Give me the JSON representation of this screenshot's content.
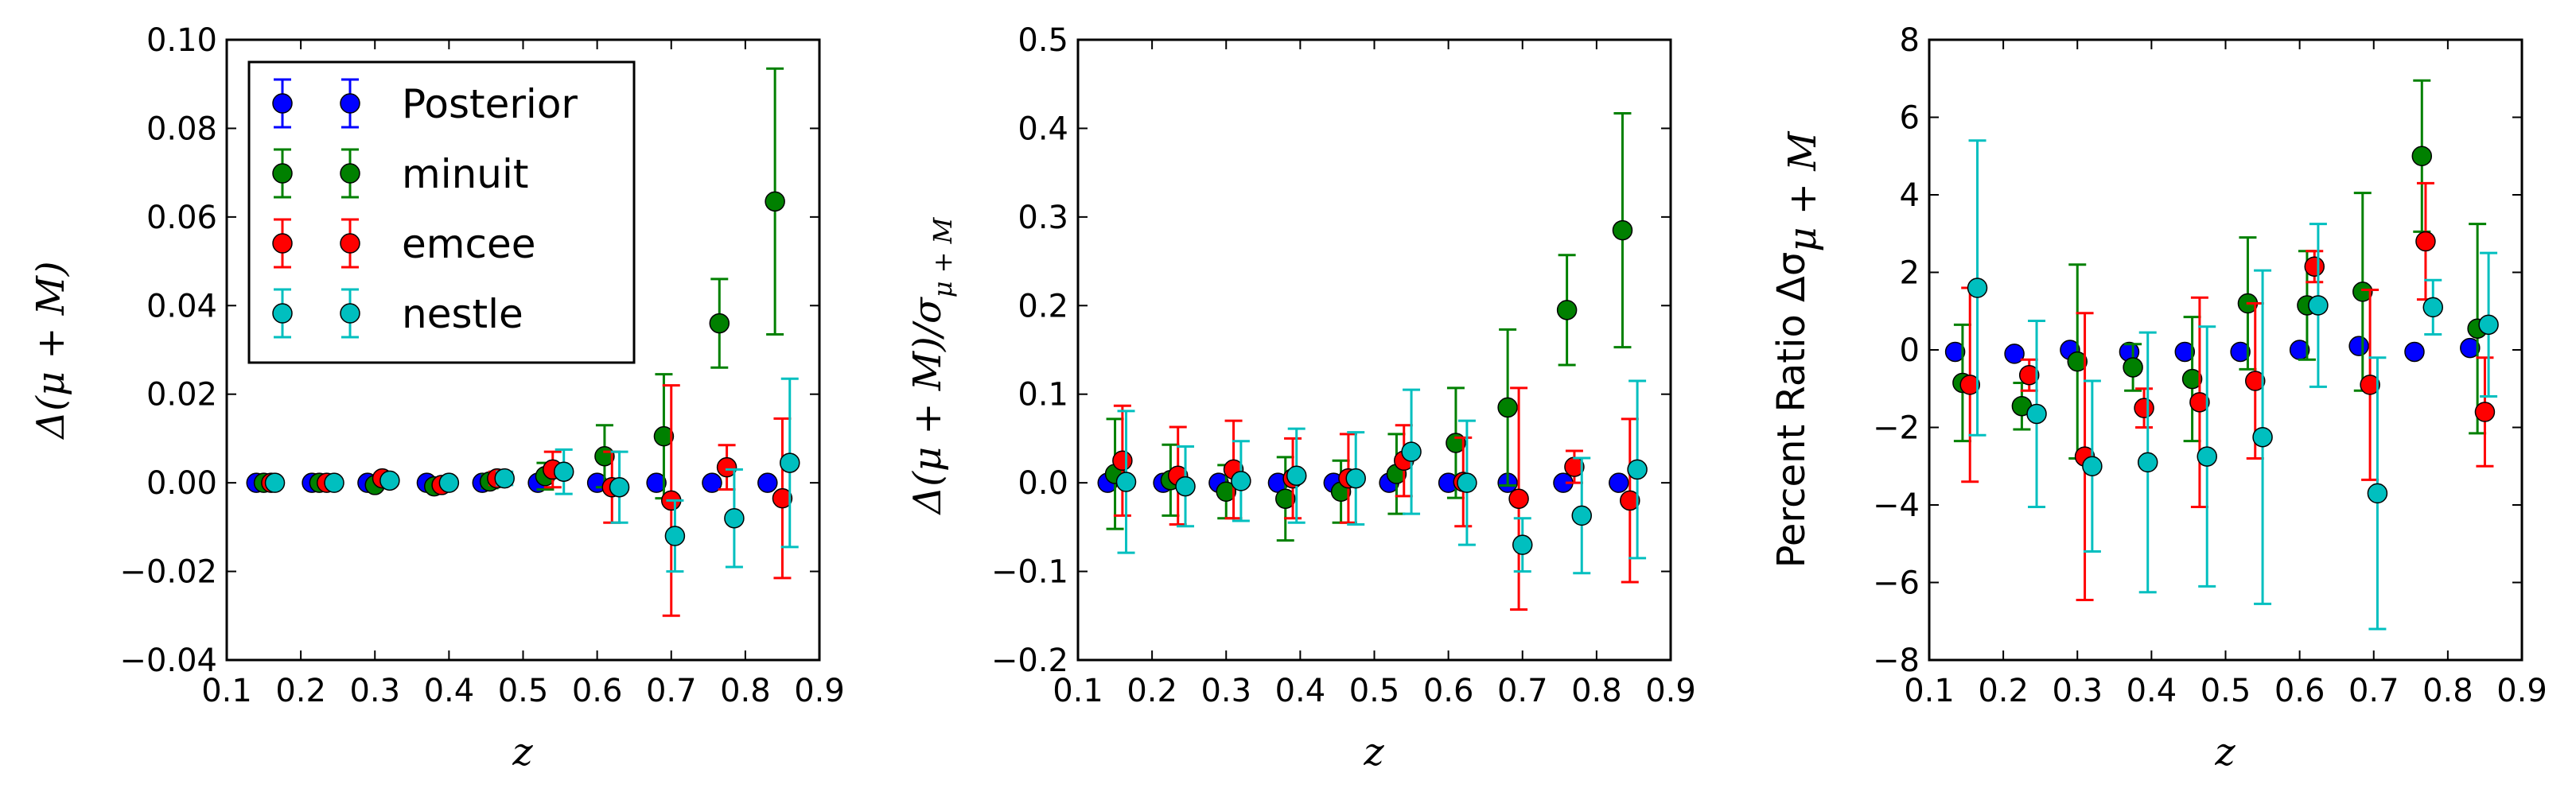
{
  "chart_data": [
    {
      "type": "scatter",
      "ylabel": "Δ(μ + M)",
      "xlabel": "z",
      "xlim": [
        0.1,
        0.9
      ],
      "ylim": [
        -0.04,
        0.1
      ],
      "xticks": [
        "0.1",
        "0.2",
        "0.3",
        "0.4",
        "0.5",
        "0.6",
        "0.7",
        "0.8",
        "0.9"
      ],
      "yticks": [
        "−0.04",
        "−0.02",
        "0.00",
        "0.02",
        "0.04",
        "0.06",
        "0.08",
        "0.10"
      ],
      "ytick_values": [
        -0.04,
        -0.02,
        0.0,
        0.02,
        0.04,
        0.06,
        0.08,
        0.1
      ],
      "legend": {
        "placement": "top-left",
        "entries": [
          "Posterior",
          "minuit",
          "emcee",
          "nestle"
        ]
      },
      "series": [
        {
          "name": "Posterior",
          "color": "#0000ff",
          "x": [
            0.14,
            0.215,
            0.29,
            0.37,
            0.445,
            0.52,
            0.6,
            0.68,
            0.755,
            0.83
          ],
          "y": [
            0,
            0,
            0,
            0,
            0,
            0,
            0,
            0,
            0,
            0
          ],
          "err": [
            0,
            0,
            0,
            0,
            0,
            0,
            0,
            0,
            0,
            0
          ]
        },
        {
          "name": "minuit",
          "color": "#008000",
          "x": [
            0.15,
            0.225,
            0.3,
            0.38,
            0.455,
            0.53,
            0.61,
            0.69,
            0.765,
            0.84
          ],
          "y": [
            0,
            0,
            -0.0005,
            -0.0008,
            0.0003,
            0.0015,
            0.006,
            0.0105,
            0.036,
            0.0635
          ],
          "err": [
            0.0006,
            0.0006,
            0.001,
            0.001,
            0.0015,
            0.003,
            0.007,
            0.014,
            0.01,
            0.03
          ]
        },
        {
          "name": "emcee",
          "color": "#ff0000",
          "x": [
            0.16,
            0.235,
            0.31,
            0.39,
            0.465,
            0.54,
            0.62,
            0.7,
            0.775,
            0.85
          ],
          "y": [
            0,
            0,
            0.001,
            -0.0005,
            0.001,
            0.003,
            -0.001,
            -0.004,
            0.0035,
            -0.0035
          ],
          "err": [
            0.0006,
            0.0006,
            0.001,
            0.001,
            0.0015,
            0.004,
            0.008,
            0.026,
            0.005,
            0.018
          ]
        },
        {
          "name": "nestle",
          "color": "#00bfbf",
          "x": [
            0.165,
            0.245,
            0.32,
            0.4,
            0.475,
            0.555,
            0.63,
            0.705,
            0.785,
            0.86
          ],
          "y": [
            0,
            0,
            0.0005,
            0,
            0.001,
            0.0025,
            -0.001,
            -0.012,
            -0.008,
            0.0045
          ],
          "err": [
            0.0006,
            0.0006,
            0.001,
            0.001,
            0.0015,
            0.005,
            0.008,
            0.008,
            0.011,
            0.019
          ]
        }
      ]
    },
    {
      "type": "scatter",
      "ylabel": "Δ(μ + M)/σ",
      "ylabel_sub": "μ + M",
      "xlabel": "z",
      "xlim": [
        0.1,
        0.9
      ],
      "ylim": [
        -0.2,
        0.5
      ],
      "xticks": [
        "0.1",
        "0.2",
        "0.3",
        "0.4",
        "0.5",
        "0.6",
        "0.7",
        "0.8",
        "0.9"
      ],
      "yticks": [
        "−0.2",
        "−0.1",
        "0.0",
        "0.1",
        "0.2",
        "0.3",
        "0.4",
        "0.5"
      ],
      "ytick_values": [
        -0.2,
        -0.1,
        0.0,
        0.1,
        0.2,
        0.3,
        0.4,
        0.5
      ],
      "series": [
        {
          "name": "Posterior",
          "color": "#0000ff",
          "x": [
            0.14,
            0.215,
            0.29,
            0.37,
            0.445,
            0.52,
            0.6,
            0.68,
            0.755,
            0.83
          ],
          "y": [
            0,
            0,
            0,
            0,
            0,
            0,
            0,
            0,
            0,
            0
          ],
          "err": [
            0,
            0,
            0,
            0,
            0,
            0,
            0,
            0,
            0,
            0
          ]
        },
        {
          "name": "minuit",
          "color": "#008000",
          "x": [
            0.15,
            0.225,
            0.3,
            0.38,
            0.455,
            0.53,
            0.61,
            0.68,
            0.76,
            0.835
          ],
          "y": [
            0.01,
            0.003,
            -0.01,
            -0.018,
            -0.01,
            0.01,
            0.045,
            0.085,
            0.195,
            0.285
          ],
          "err": [
            0.062,
            0.04,
            0.03,
            0.047,
            0.035,
            0.045,
            0.062,
            0.088,
            0.062,
            0.132
          ]
        },
        {
          "name": "emcee",
          "color": "#ff0000",
          "x": [
            0.16,
            0.235,
            0.31,
            0.39,
            0.465,
            0.54,
            0.62,
            0.695,
            0.77,
            0.845
          ],
          "y": [
            0.025,
            0.008,
            0.015,
            0.005,
            0.005,
            0.025,
            0.001,
            -0.018,
            0.018,
            -0.02
          ],
          "err": [
            0.062,
            0.055,
            0.055,
            0.045,
            0.05,
            0.04,
            0.05,
            0.125,
            0.018,
            0.092
          ]
        },
        {
          "name": "nestle",
          "color": "#00bfbf",
          "x": [
            0.165,
            0.245,
            0.32,
            0.395,
            0.475,
            0.55,
            0.625,
            0.7,
            0.78,
            0.855
          ],
          "y": [
            0.001,
            -0.004,
            0.002,
            0.008,
            0.005,
            0.035,
            0,
            -0.07,
            -0.037,
            0.015
          ],
          "err": [
            0.08,
            0.045,
            0.045,
            0.053,
            0.052,
            0.07,
            0.07,
            0.03,
            0.065,
            0.1
          ]
        }
      ]
    },
    {
      "type": "scatter",
      "ylabel": "Percent Ratio Δσ",
      "ylabel_sub": "μ + M",
      "xlabel": "z",
      "xlim": [
        0.1,
        0.9
      ],
      "ylim": [
        -8,
        8
      ],
      "xticks": [
        "0.1",
        "0.2",
        "0.3",
        "0.4",
        "0.5",
        "0.6",
        "0.7",
        "0.8",
        "0.9"
      ],
      "yticks": [
        "−8",
        "−6",
        "−4",
        "−2",
        "0",
        "2",
        "4",
        "6",
        "8"
      ],
      "ytick_values": [
        -8,
        -6,
        -4,
        -2,
        0,
        2,
        4,
        6,
        8
      ],
      "series": [
        {
          "name": "Posterior",
          "color": "#0000ff",
          "x": [
            0.135,
            0.215,
            0.29,
            0.37,
            0.445,
            0.52,
            0.6,
            0.68,
            0.755,
            0.83
          ],
          "y": [
            -0.05,
            -0.1,
            0,
            -0.05,
            -0.05,
            -0.05,
            0,
            0.1,
            -0.05,
            0.05
          ],
          "err": [
            0,
            0,
            0,
            0,
            0,
            0,
            0,
            0,
            0,
            0
          ]
        },
        {
          "name": "minuit",
          "color": "#008000",
          "x": [
            0.145,
            0.225,
            0.3,
            0.375,
            0.455,
            0.53,
            0.61,
            0.685,
            0.765,
            0.84
          ],
          "y": [
            -0.85,
            -1.45,
            -0.3,
            -0.45,
            -0.75,
            1.2,
            1.15,
            1.5,
            5.0,
            0.55
          ],
          "err": [
            1.5,
            0.6,
            2.5,
            0.6,
            1.6,
            1.7,
            1.4,
            2.55,
            1.95,
            2.7
          ]
        },
        {
          "name": "emcee",
          "color": "#ff0000",
          "x": [
            0.155,
            0.235,
            0.31,
            0.39,
            0.465,
            0.54,
            0.62,
            0.695,
            0.77,
            0.85
          ],
          "y": [
            -0.9,
            -0.65,
            -2.75,
            -1.5,
            -1.35,
            -0.8,
            2.15,
            -0.9,
            2.8,
            -1.6
          ],
          "err": [
            2.5,
            0.4,
            3.7,
            0.5,
            2.7,
            2.0,
            0.4,
            2.45,
            1.5,
            1.4
          ]
        },
        {
          "name": "nestle",
          "color": "#00bfbf",
          "x": [
            0.165,
            0.245,
            0.32,
            0.395,
            0.475,
            0.55,
            0.625,
            0.705,
            0.78,
            0.855
          ],
          "y": [
            1.6,
            -1.65,
            -3.0,
            -2.9,
            -2.75,
            -2.25,
            1.15,
            -3.7,
            1.1,
            0.65
          ],
          "err": [
            3.8,
            2.4,
            2.2,
            3.35,
            3.35,
            4.3,
            2.1,
            3.5,
            0.7,
            1.85
          ]
        }
      ]
    }
  ]
}
